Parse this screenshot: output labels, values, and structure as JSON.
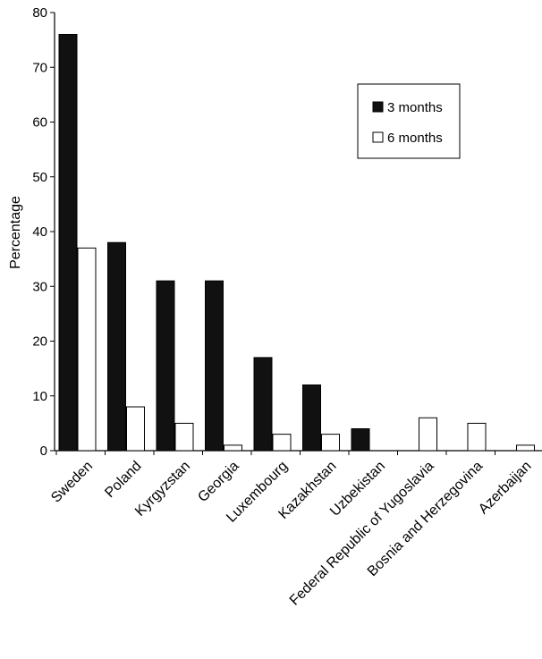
{
  "chart_data": {
    "type": "bar",
    "title": "",
    "xlabel": "",
    "ylabel": "Percentage",
    "ylim": [
      0,
      80
    ],
    "yticks": [
      0,
      10,
      20,
      30,
      40,
      50,
      60,
      70,
      80
    ],
    "grid": false,
    "legend_position": "top-right",
    "categories": [
      "Sweden",
      "Poland",
      "Kyrgyzstan",
      "Georgia",
      "Luxembourg",
      "Kazakhstan",
      "Uzbekistan",
      "Federal Republic of Yugoslavia",
      "Bosnia and Herzegovina",
      "Azerbaijan"
    ],
    "series": [
      {
        "name": "3 months",
        "color": "#111111",
        "values": [
          76,
          38,
          31,
          31,
          17,
          12,
          4,
          null,
          null,
          null
        ]
      },
      {
        "name": "6 months",
        "color": "#ffffff",
        "values": [
          37,
          8,
          5,
          1,
          3,
          3,
          0,
          6,
          5,
          1
        ]
      }
    ]
  }
}
